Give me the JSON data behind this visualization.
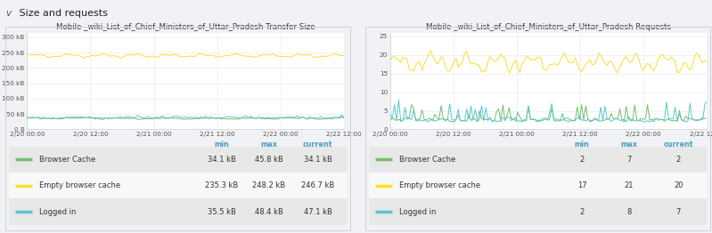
{
  "left_title": "Mobile _wiki_List_of_Chief_Ministers_of_Uttar_Pradesh Transfer Size",
  "right_title": "Mobile _wiki_List_of_Chief_Ministers_of_Uttar_Pradesh Requests",
  "x_labels": [
    "2/20 00:00",
    "2/20 12:00",
    "2/21 00:00",
    "2/21 12:00",
    "2/22 00:00",
    "2/22 12:00"
  ],
  "left_ylim": [
    0,
    315000
  ],
  "right_ylim": [
    0,
    26
  ],
  "colors": {
    "browser_cache": "#73bf69",
    "empty_cache": "#fade2a",
    "logged_in": "#5ac6cd"
  },
  "left_legend": [
    {
      "label": "Browser Cache",
      "min": "34.1 kB",
      "max": "45.8 kB",
      "current": "34.1 kB",
      "color": "#73bf69"
    },
    {
      "label": "Empty browser cache",
      "min": "235.3 kB",
      "max": "248.2 kB",
      "current": "246.7 kB",
      "color": "#fade2a"
    },
    {
      "label": "Logged in",
      "min": "35.5 kB",
      "max": "48.4 kB",
      "current": "47.1 kB",
      "color": "#5ac6cd"
    }
  ],
  "right_legend": [
    {
      "label": "Browser Cache",
      "min": "2",
      "max": "7",
      "current": "2",
      "color": "#73bf69"
    },
    {
      "label": "Empty browser cache",
      "min": "17",
      "max": "21",
      "current": "20",
      "color": "#fade2a"
    },
    {
      "label": "Logged in",
      "min": "2",
      "max": "8",
      "current": "7",
      "color": "#5ac6cd"
    }
  ],
  "header_text": "v  Size and requests",
  "col_headers": [
    "min",
    "max",
    "current"
  ],
  "col_color": "#4a9cc7",
  "bg_outer": "#f0f2f5",
  "bg_panel": "#ffffff",
  "border_color": "#d0d0d0",
  "grid_color": "#ebebeb",
  "tick_color": "#555555",
  "title_color": "#333333",
  "label_color": "#444444",
  "row_colors": [
    "#e8e8e8",
    "#f8f8f8",
    "#e8e8e8"
  ]
}
